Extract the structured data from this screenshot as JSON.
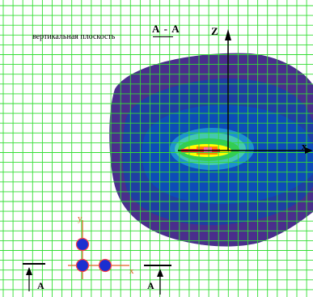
{
  "header": {
    "plane_title": "вертикальная плоскость",
    "section_label": "А - А"
  },
  "axes": {
    "z_label": "Z",
    "x_label": "x",
    "inset_y_label": "y",
    "inset_x_label": "x"
  },
  "section_marks": [
    "А",
    "А"
  ],
  "colors": {
    "grid": "#33dd33",
    "outer_region": "#4a2e8c",
    "middle_region": "#1f3ea3",
    "inner_region": "#0d4cb8",
    "core_green": "#33cc55",
    "core_yellow": "#ffff00",
    "core_orange": "#ff8800",
    "inset_dot": "#1b2fd0",
    "inset_axis": "#e06020"
  }
}
